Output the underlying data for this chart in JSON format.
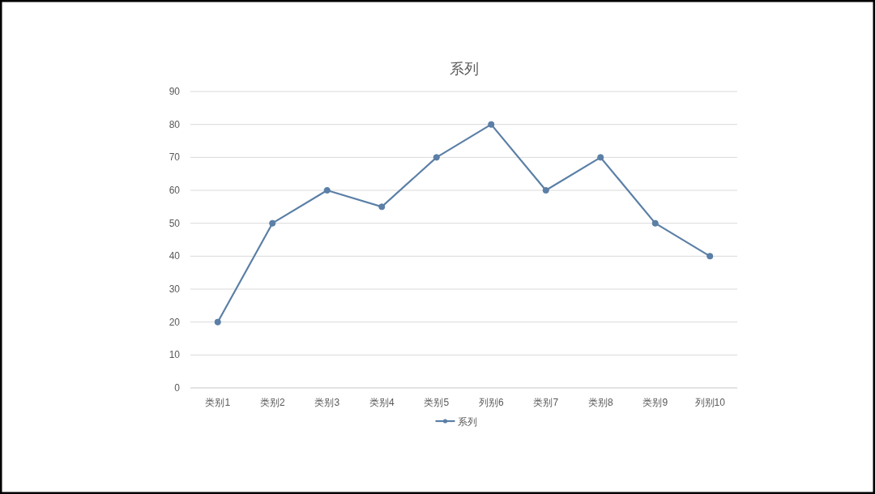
{
  "chart_data": {
    "type": "line",
    "title": "系列",
    "categories": [
      "类别1",
      "类别2",
      "类别3",
      "类别4",
      "类别5",
      "列别6",
      "类别7",
      "类别8",
      "类别9",
      "列别10"
    ],
    "series": [
      {
        "name": "系列",
        "color": "#5b7fa6",
        "values": [
          20,
          50,
          60,
          55,
          70,
          80,
          60,
          70,
          50,
          40
        ]
      }
    ],
    "ylim": [
      0,
      90
    ],
    "yticks": [
      0,
      10,
      20,
      30,
      40,
      50,
      60,
      70,
      80,
      90
    ],
    "grid": "y",
    "legend": "bottom",
    "marker": "circle",
    "line_style": "solid"
  }
}
